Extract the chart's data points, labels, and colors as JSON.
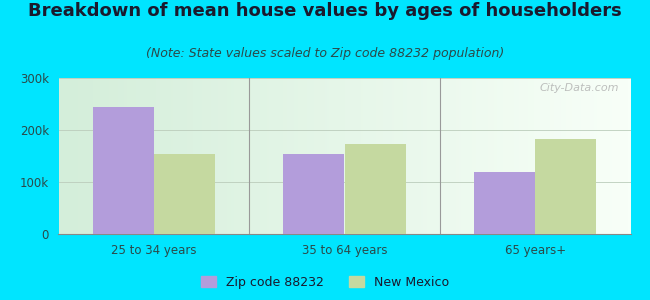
{
  "title": "Breakdown of mean house values by ages of householders",
  "subtitle": "(Note: State values scaled to Zip code 88232 population)",
  "categories": [
    "25 to 34 years",
    "35 to 64 years",
    "65 years+"
  ],
  "zip_values": [
    245000,
    153000,
    120000
  ],
  "state_values": [
    153000,
    173000,
    183000
  ],
  "zip_color": "#b39ddb",
  "state_color": "#c5d9a0",
  "background_color": "#00e5ff",
  "ylim": [
    0,
    300000
  ],
  "yticks": [
    0,
    100000,
    200000,
    300000
  ],
  "ytick_labels": [
    "0",
    "100k",
    "200k",
    "300k"
  ],
  "legend_zip": "Zip code 88232",
  "legend_state": "New Mexico",
  "title_fontsize": 13,
  "subtitle_fontsize": 9,
  "bar_width": 0.32,
  "watermark": "City-Data.com",
  "title_color": "#1a1a2e",
  "subtitle_color": "#2a4a4a",
  "tick_color": "#2a4a4a"
}
